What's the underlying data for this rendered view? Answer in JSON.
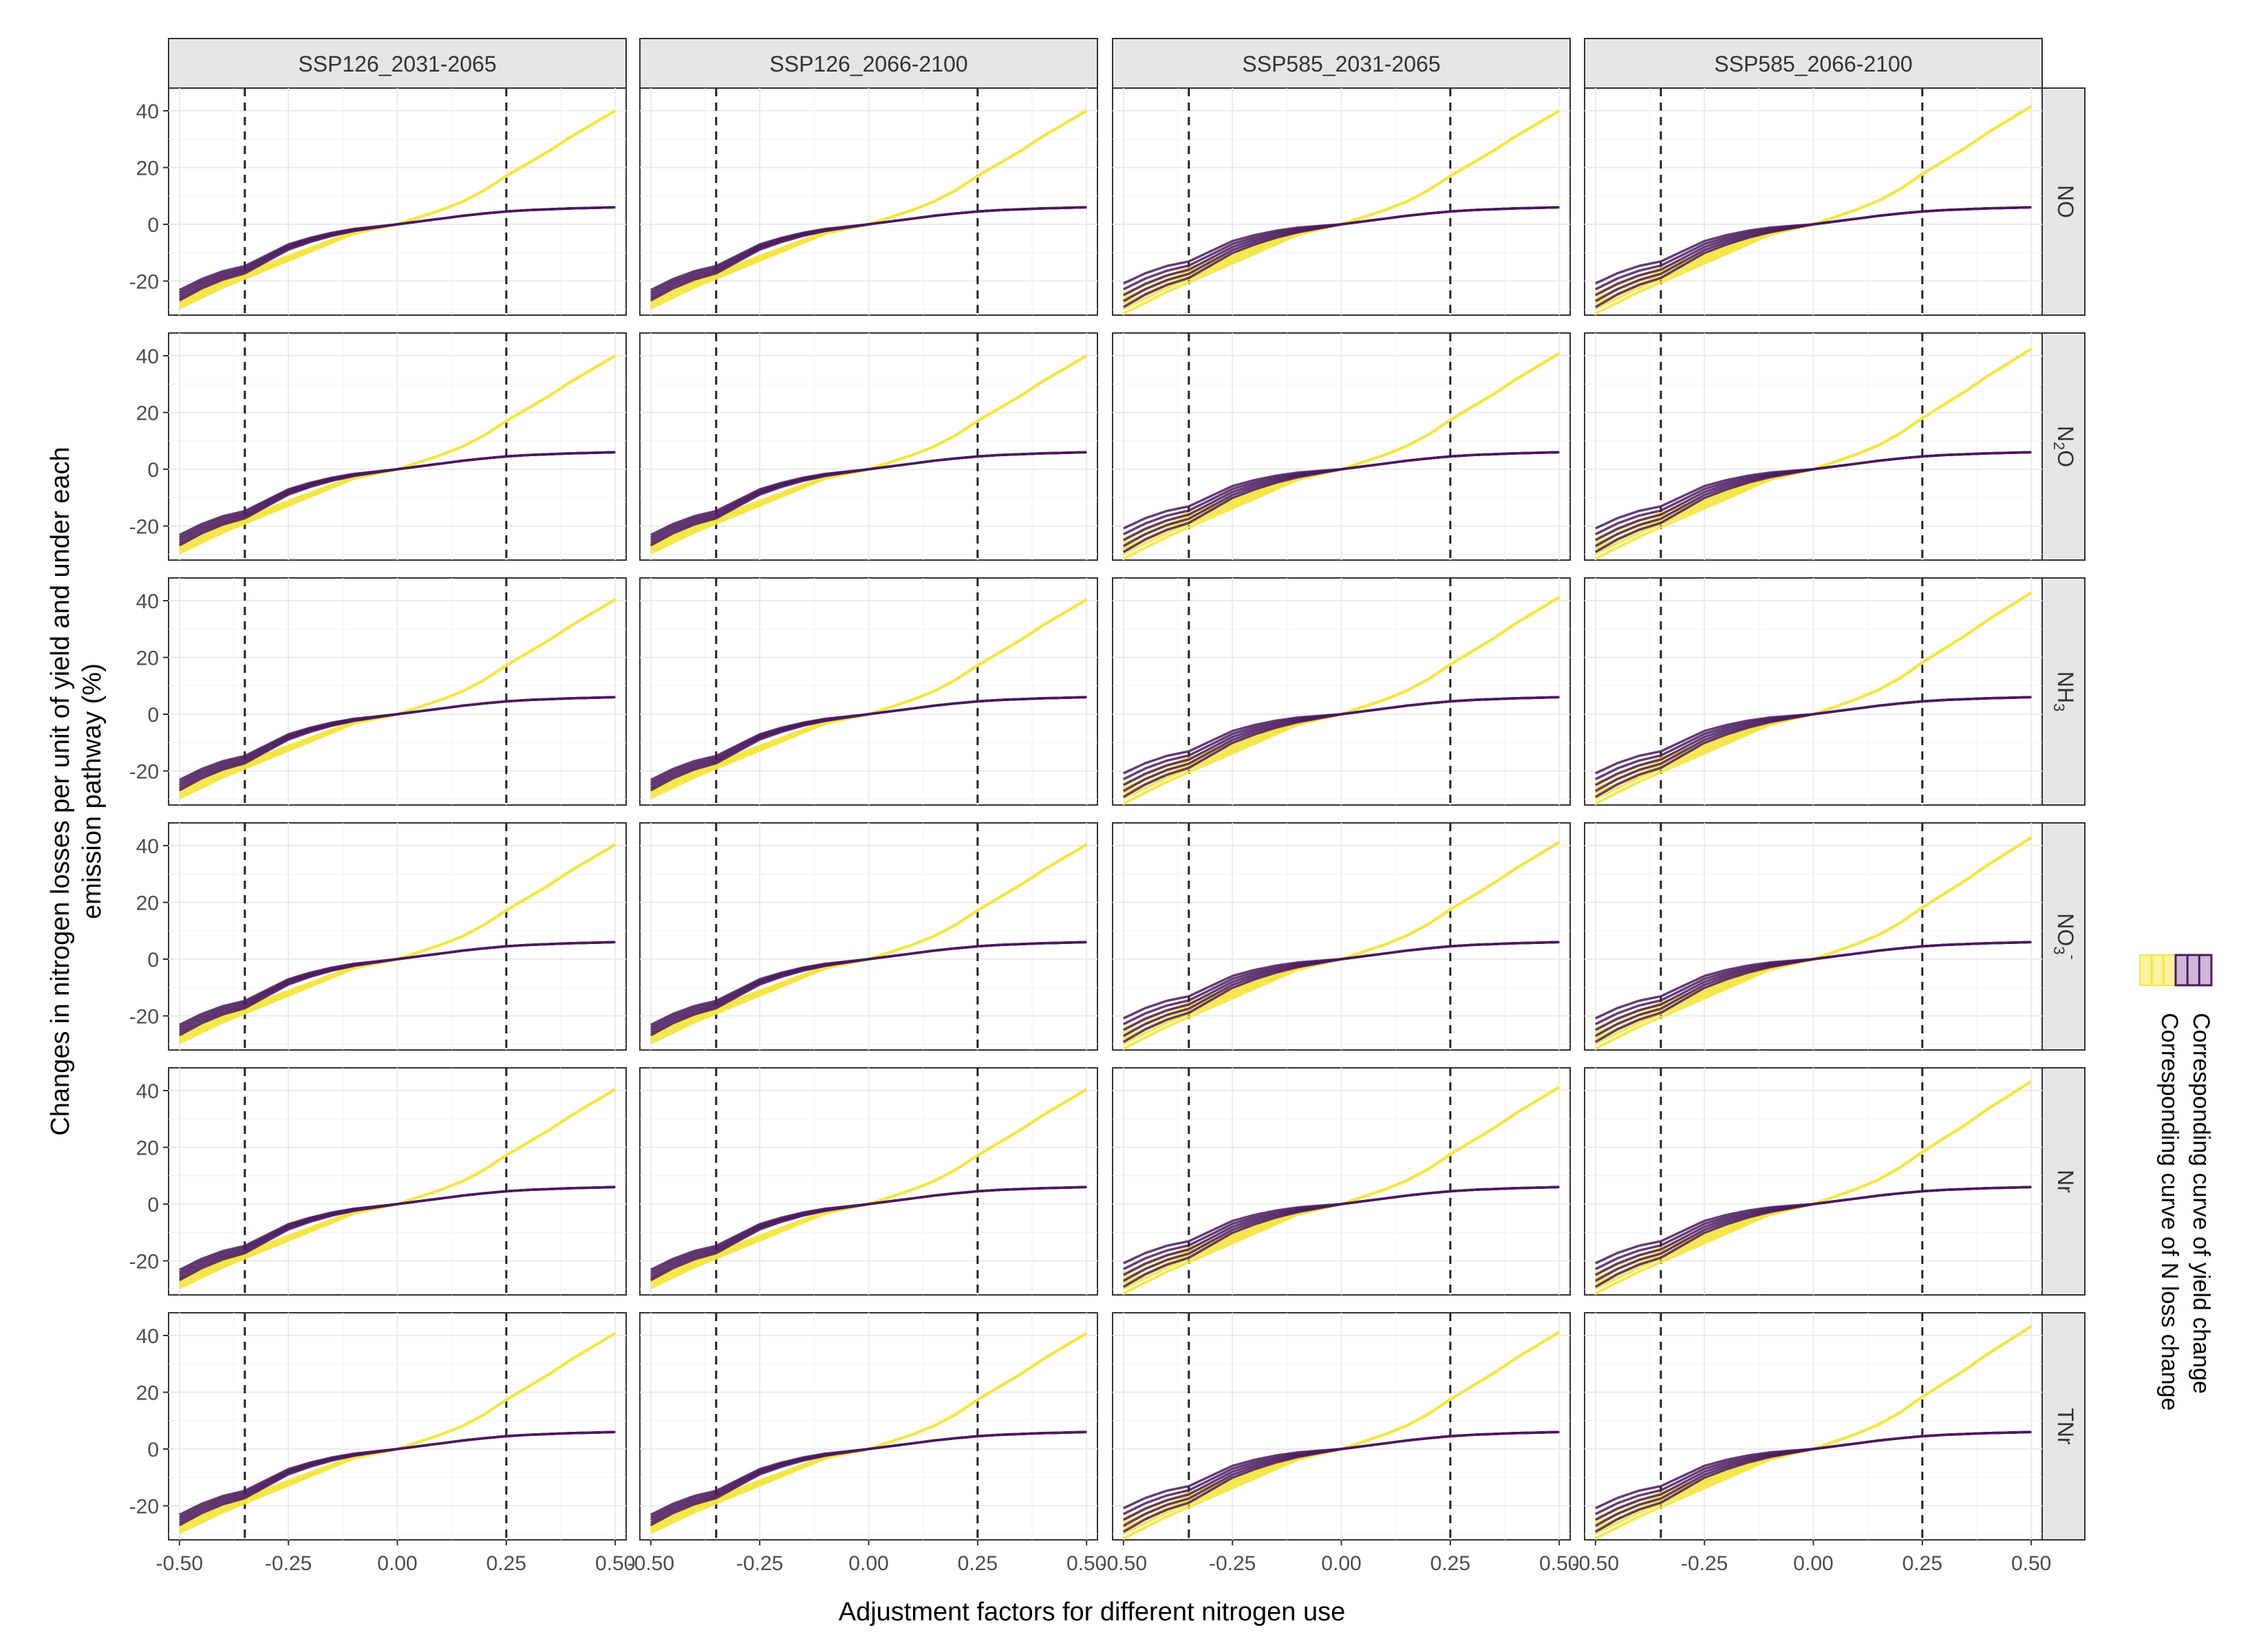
{
  "chart_data": {
    "type": "line",
    "layout": "facet_grid",
    "columns": [
      "SSP126_2031-2065",
      "SSP126_2066-2100",
      "SSP585_2031-2065",
      "SSP585_2066-2100"
    ],
    "rows": [
      {
        "label": "NO",
        "base": "NO",
        "sub": "",
        "sup": ""
      },
      {
        "label": "N2O",
        "base": "N",
        "sub": "2",
        "sup": "",
        "tail": "O"
      },
      {
        "label": "NH3",
        "base": "NH",
        "sub": "3",
        "sup": ""
      },
      {
        "label": "NO3-",
        "base": "NO",
        "sub": "3",
        "sup": "-"
      },
      {
        "label": "Nr",
        "base": "Nr",
        "sub": "",
        "sup": ""
      },
      {
        "label": "TNr",
        "base": "TNr",
        "sub": "",
        "sup": ""
      }
    ],
    "xlabel": "Adjustment factors for different nitrogen use",
    "ylabel_lines": [
      "Changes in nitrogen losses per unit of yield and under each",
      "emission pathway (%)"
    ],
    "x_ticks": [
      -0.5,
      -0.25,
      0.0,
      0.25,
      0.5
    ],
    "x_tick_labels": [
      "-0.50",
      "-0.25",
      "0.00",
      "0.25",
      "0.50"
    ],
    "y_ticks": [
      -20,
      0,
      20,
      40
    ],
    "y_tick_labels": [
      "-20",
      "0",
      "20",
      "40"
    ],
    "xlim": [
      -0.525,
      0.525
    ],
    "ylim": [
      -32,
      48
    ],
    "vlines": [
      -0.35,
      0.25
    ],
    "x_samples": [
      -0.5,
      -0.45,
      -0.4,
      -0.35,
      -0.3,
      -0.25,
      -0.2,
      -0.15,
      -0.1,
      -0.05,
      0.0,
      0.05,
      0.1,
      0.15,
      0.2,
      0.25,
      0.3,
      0.35,
      0.4,
      0.45,
      0.5
    ],
    "series": [
      {
        "name": "Corresponding curve of N loss change",
        "color": "#f5e642",
        "values": [
          -28,
          -24.5,
          -21,
          -18,
          -15,
          -12,
          -9,
          -6,
          -3,
          -1.5,
          0,
          2.5,
          5,
          8,
          12,
          17,
          21.5,
          26,
          31,
          35.5,
          40
        ]
      },
      {
        "name": "Corresponding curve of yield change",
        "color": "#4a1a5e",
        "values": [
          -25,
          -21,
          -18,
          -16,
          -12,
          -8,
          -5.5,
          -3.5,
          -2,
          -1,
          0,
          1,
          2,
          3,
          3.8,
          4.5,
          5,
          5.3,
          5.6,
          5.8,
          6
        ]
      }
    ],
    "legend": {
      "position": "right",
      "entries": [
        "Corresponding curve of yield change",
        "Corresponding curve of N loss change"
      ]
    },
    "grid": true
  }
}
